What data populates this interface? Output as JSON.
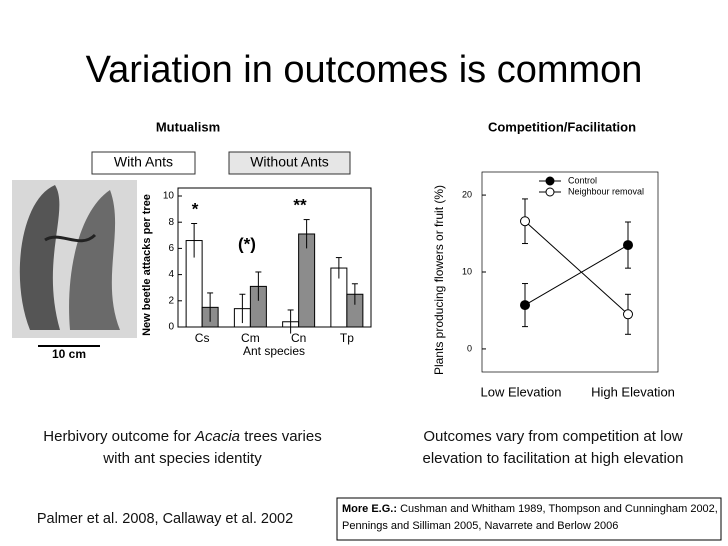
{
  "title": "Variation in outcomes is common",
  "photo_scale": "10 cm",
  "caption_left": {
    "before": "Herbivory outcome for ",
    "italic": "Acacia",
    "after": " trees varies with ant species identity"
  },
  "caption_right": "Outcomes vary from competition at low elevation to facilitation at high elevation",
  "citation": "Palmer et al. 2008, Callaway et al. 2002",
  "more": {
    "label": "More E.G.:",
    "text": " Cushman and Whitham 1989, Thompson and Cunningham 2002, Pennings and Silliman 2005, Navarrete and Berlow 2006"
  },
  "chart_data": [
    {
      "type": "bar",
      "title": "Mutualism",
      "x_label": "Ant species",
      "y_label": "New beetle attacks per tree",
      "categories": [
        "Cs",
        "Cm",
        "Cn",
        "Tp"
      ],
      "series": [
        {
          "name": "With Ants",
          "color": "#ffffff",
          "values": [
            6.6,
            1.4,
            0.4,
            4.5
          ],
          "errors": [
            1.3,
            1.1,
            0.9,
            0.8
          ]
        },
        {
          "name": "Without Ants",
          "color": "#8c8c8c",
          "values": [
            1.5,
            3.1,
            7.1,
            2.5
          ],
          "errors": [
            1.1,
            1.1,
            1.1,
            0.8
          ]
        }
      ],
      "annotations": [
        "*",
        "(*)",
        "**"
      ],
      "ylim": [
        0,
        10
      ],
      "yticks": [
        0,
        2,
        4,
        6,
        8,
        10
      ]
    },
    {
      "type": "line",
      "title": "Competition/Facilitation",
      "y_label": "Plants producing flowers or fruit (%)",
      "categories": [
        "Low Elevation",
        "High Elevation"
      ],
      "series": [
        {
          "name": "Control",
          "color": "#000000",
          "values": [
            5.7,
            13.5
          ],
          "errors": [
            2.8,
            3.0
          ]
        },
        {
          "name": "Neighbour removal",
          "color": "#ffffff",
          "values": [
            16.6,
            4.5
          ],
          "errors": [
            2.9,
            2.6
          ]
        }
      ],
      "ylim": [
        -3,
        23
      ],
      "yticks": [
        0,
        10,
        20
      ]
    }
  ]
}
